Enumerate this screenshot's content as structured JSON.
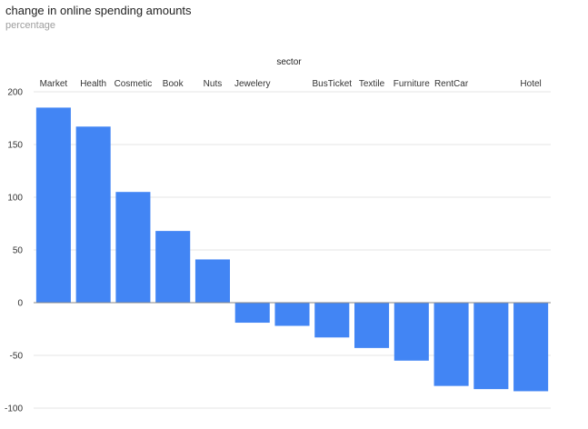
{
  "chart_data": {
    "type": "bar",
    "title": "change in online spending amounts",
    "subtitle": "percentage",
    "xlabel": "sector",
    "ylabel": "",
    "ylim": [
      -100,
      200
    ],
    "yticks": [
      200,
      150,
      100,
      50,
      0,
      -50,
      -100
    ],
    "grid": true,
    "categories": [
      "Market",
      "Health",
      "Cosmetic",
      "Book",
      "Nuts",
      "Jewelery",
      "",
      "BusTicket",
      "Textile",
      "Furniture",
      "RentCar",
      "",
      "Hotel"
    ],
    "values": [
      185,
      167,
      105,
      68,
      41,
      -19,
      -22,
      -33,
      -43,
      -55,
      -79,
      -82,
      -84
    ],
    "colors": {
      "bar": "#4285f4",
      "grid": "#e6e6e6",
      "zero_line": "#888888"
    }
  }
}
